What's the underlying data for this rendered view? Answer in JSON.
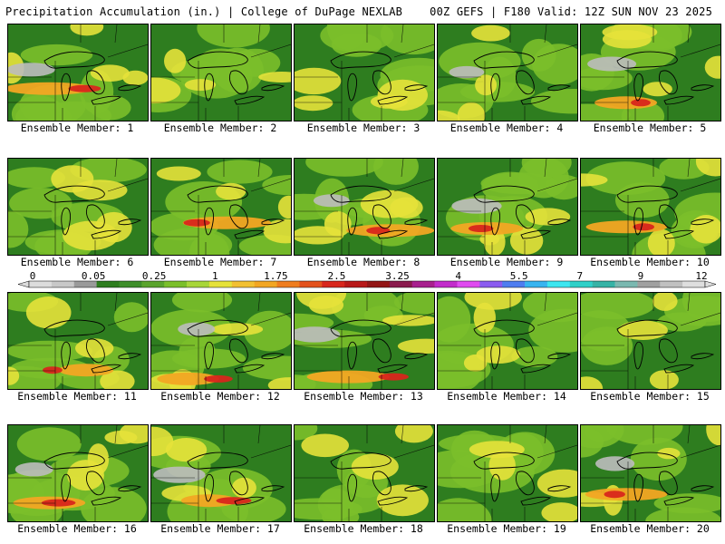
{
  "header": {
    "left": "Precipitation Accumulation (in.) | College of DuPage NEXLAB",
    "right": "00Z GEFS | F180 Valid: 12Z SUN NOV 23 2025"
  },
  "colors": {
    "background": "#ffffff",
    "land_base": "#2e7d1f",
    "moderate": "#7bbf2a",
    "heavy": "#e6e23a",
    "very_heavy": "#f2a623",
    "extreme": "#d8261c",
    "snowy_gray": "#bdbdbd"
  },
  "colorbar": {
    "labels": [
      "0",
      "0.05",
      "0.25",
      "1",
      "1.75",
      "2.5",
      "3.25",
      "4",
      "5.5",
      "7",
      "9",
      "12"
    ],
    "swatches": [
      "#dcdcdc",
      "#c8c8c8",
      "#9a9a9a",
      "#2e7d1f",
      "#3e8e2a",
      "#5aa42c",
      "#7bbf2a",
      "#a8d63a",
      "#e6e23a",
      "#f2c032",
      "#f2a623",
      "#ef7d1f",
      "#e4521d",
      "#d8261c",
      "#b81818",
      "#931515",
      "#8a1a4e",
      "#a8208e",
      "#c22bcb",
      "#e04bf0",
      "#8b5cf0",
      "#4f7df0",
      "#38b4f0",
      "#3de6f0",
      "#2fd0c8",
      "#36b3a6",
      "#7ab8b0",
      "#a0a0a0",
      "#c0c0c0",
      "#dedede"
    ]
  },
  "members": [
    {
      "label": "Ensemble Member: 1"
    },
    {
      "label": "Ensemble Member: 2"
    },
    {
      "label": "Ensemble Member: 3"
    },
    {
      "label": "Ensemble Member: 4"
    },
    {
      "label": "Ensemble Member: 5"
    },
    {
      "label": "Ensemble Member: 6"
    },
    {
      "label": "Ensemble Member: 7"
    },
    {
      "label": "Ensemble Member: 8"
    },
    {
      "label": "Ensemble Member: 9"
    },
    {
      "label": "Ensemble Member: 10"
    },
    {
      "label": "Ensemble Member: 11"
    },
    {
      "label": "Ensemble Member: 12"
    },
    {
      "label": "Ensemble Member: 13"
    },
    {
      "label": "Ensemble Member: 14"
    },
    {
      "label": "Ensemble Member: 15"
    },
    {
      "label": "Ensemble Member: 16"
    },
    {
      "label": "Ensemble Member: 17"
    },
    {
      "label": "Ensemble Member: 18"
    },
    {
      "label": "Ensemble Member: 19"
    },
    {
      "label": "Ensemble Member: 20"
    }
  ]
}
